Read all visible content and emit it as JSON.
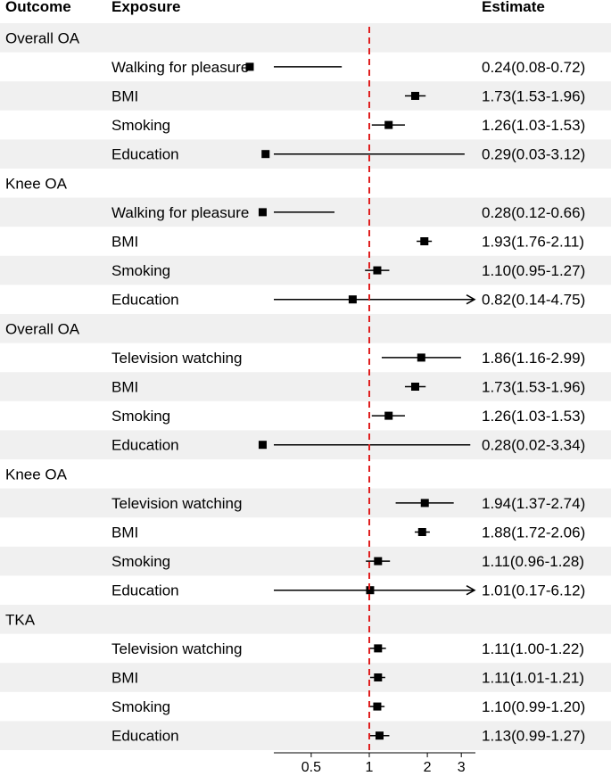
{
  "chart_data": {
    "type": "forest",
    "title": "",
    "headers": {
      "outcome": "Outcome",
      "exposure": "Exposure",
      "estimate": "Estimate"
    },
    "x_axis": {
      "scale": "log",
      "range": [
        0.32,
        3.55
      ],
      "ticks": [
        0.5,
        1,
        2,
        3
      ],
      "tick_labels": [
        "0.5",
        "1",
        "2",
        "3"
      ]
    },
    "reference_line": 1,
    "colors": {
      "band": "#f0f0f0",
      "reference": "#e02020",
      "marker": "#000000"
    },
    "rows": [
      {
        "type": "group",
        "label": "Overall OA"
      },
      {
        "type": "item",
        "label": "Walking for pleasure",
        "est": 0.24,
        "lo": 0.08,
        "hi": 0.72,
        "text": "0.24(0.08-0.72)"
      },
      {
        "type": "item",
        "label": "BMI",
        "est": 1.73,
        "lo": 1.53,
        "hi": 1.96,
        "text": "1.73(1.53-1.96)"
      },
      {
        "type": "item",
        "label": "Smoking",
        "est": 1.26,
        "lo": 1.03,
        "hi": 1.53,
        "text": "1.26(1.03-1.53)"
      },
      {
        "type": "item",
        "label": "Education",
        "est": 0.29,
        "lo": 0.03,
        "hi": 3.12,
        "text": "0.29(0.03-3.12)"
      },
      {
        "type": "group",
        "label": "Knee OA"
      },
      {
        "type": "item",
        "label": "Walking for pleasure",
        "est": 0.28,
        "lo": 0.12,
        "hi": 0.66,
        "text": "0.28(0.12-0.66)"
      },
      {
        "type": "item",
        "label": "BMI",
        "est": 1.93,
        "lo": 1.76,
        "hi": 2.11,
        "text": "1.93(1.76-2.11)"
      },
      {
        "type": "item",
        "label": "Smoking",
        "est": 1.1,
        "lo": 0.95,
        "hi": 1.27,
        "text": "1.10(0.95-1.27)"
      },
      {
        "type": "item",
        "label": "Education",
        "est": 0.82,
        "lo": 0.14,
        "hi": 4.75,
        "text": "0.82(0.14-4.75)"
      },
      {
        "type": "group",
        "label": "Overall OA"
      },
      {
        "type": "item",
        "label": "Television watching",
        "est": 1.86,
        "lo": 1.16,
        "hi": 2.99,
        "text": "1.86(1.16-2.99)"
      },
      {
        "type": "item",
        "label": "BMI",
        "est": 1.73,
        "lo": 1.53,
        "hi": 1.96,
        "text": "1.73(1.53-1.96)"
      },
      {
        "type": "item",
        "label": "Smoking",
        "est": 1.26,
        "lo": 1.03,
        "hi": 1.53,
        "text": "1.26(1.03-1.53)"
      },
      {
        "type": "item",
        "label": "Education",
        "est": 0.28,
        "lo": 0.02,
        "hi": 3.34,
        "text": "0.28(0.02-3.34)"
      },
      {
        "type": "group",
        "label": "Knee OA"
      },
      {
        "type": "item",
        "label": "Television watching",
        "est": 1.94,
        "lo": 1.37,
        "hi": 2.74,
        "text": "1.94(1.37-2.74)"
      },
      {
        "type": "item",
        "label": "BMI",
        "est": 1.88,
        "lo": 1.72,
        "hi": 2.06,
        "text": "1.88(1.72-2.06)"
      },
      {
        "type": "item",
        "label": "Smoking",
        "est": 1.11,
        "lo": 0.96,
        "hi": 1.28,
        "text": "1.11(0.96-1.28)"
      },
      {
        "type": "item",
        "label": "Education",
        "est": 1.01,
        "lo": 0.17,
        "hi": 6.12,
        "text": "1.01(0.17-6.12)"
      },
      {
        "type": "group",
        "label": "TKA"
      },
      {
        "type": "item",
        "label": "Television watching",
        "est": 1.11,
        "lo": 1.0,
        "hi": 1.22,
        "text": "1.11(1.00-1.22)"
      },
      {
        "type": "item",
        "label": "BMI",
        "est": 1.11,
        "lo": 1.01,
        "hi": 1.21,
        "text": "1.11(1.01-1.21)"
      },
      {
        "type": "item",
        "label": "Smoking",
        "est": 1.1,
        "lo": 0.99,
        "hi": 1.2,
        "text": "1.10(0.99-1.20)"
      },
      {
        "type": "item",
        "label": "Education",
        "est": 1.13,
        "lo": 0.99,
        "hi": 1.27,
        "text": "1.13(0.99-1.27)"
      }
    ]
  }
}
